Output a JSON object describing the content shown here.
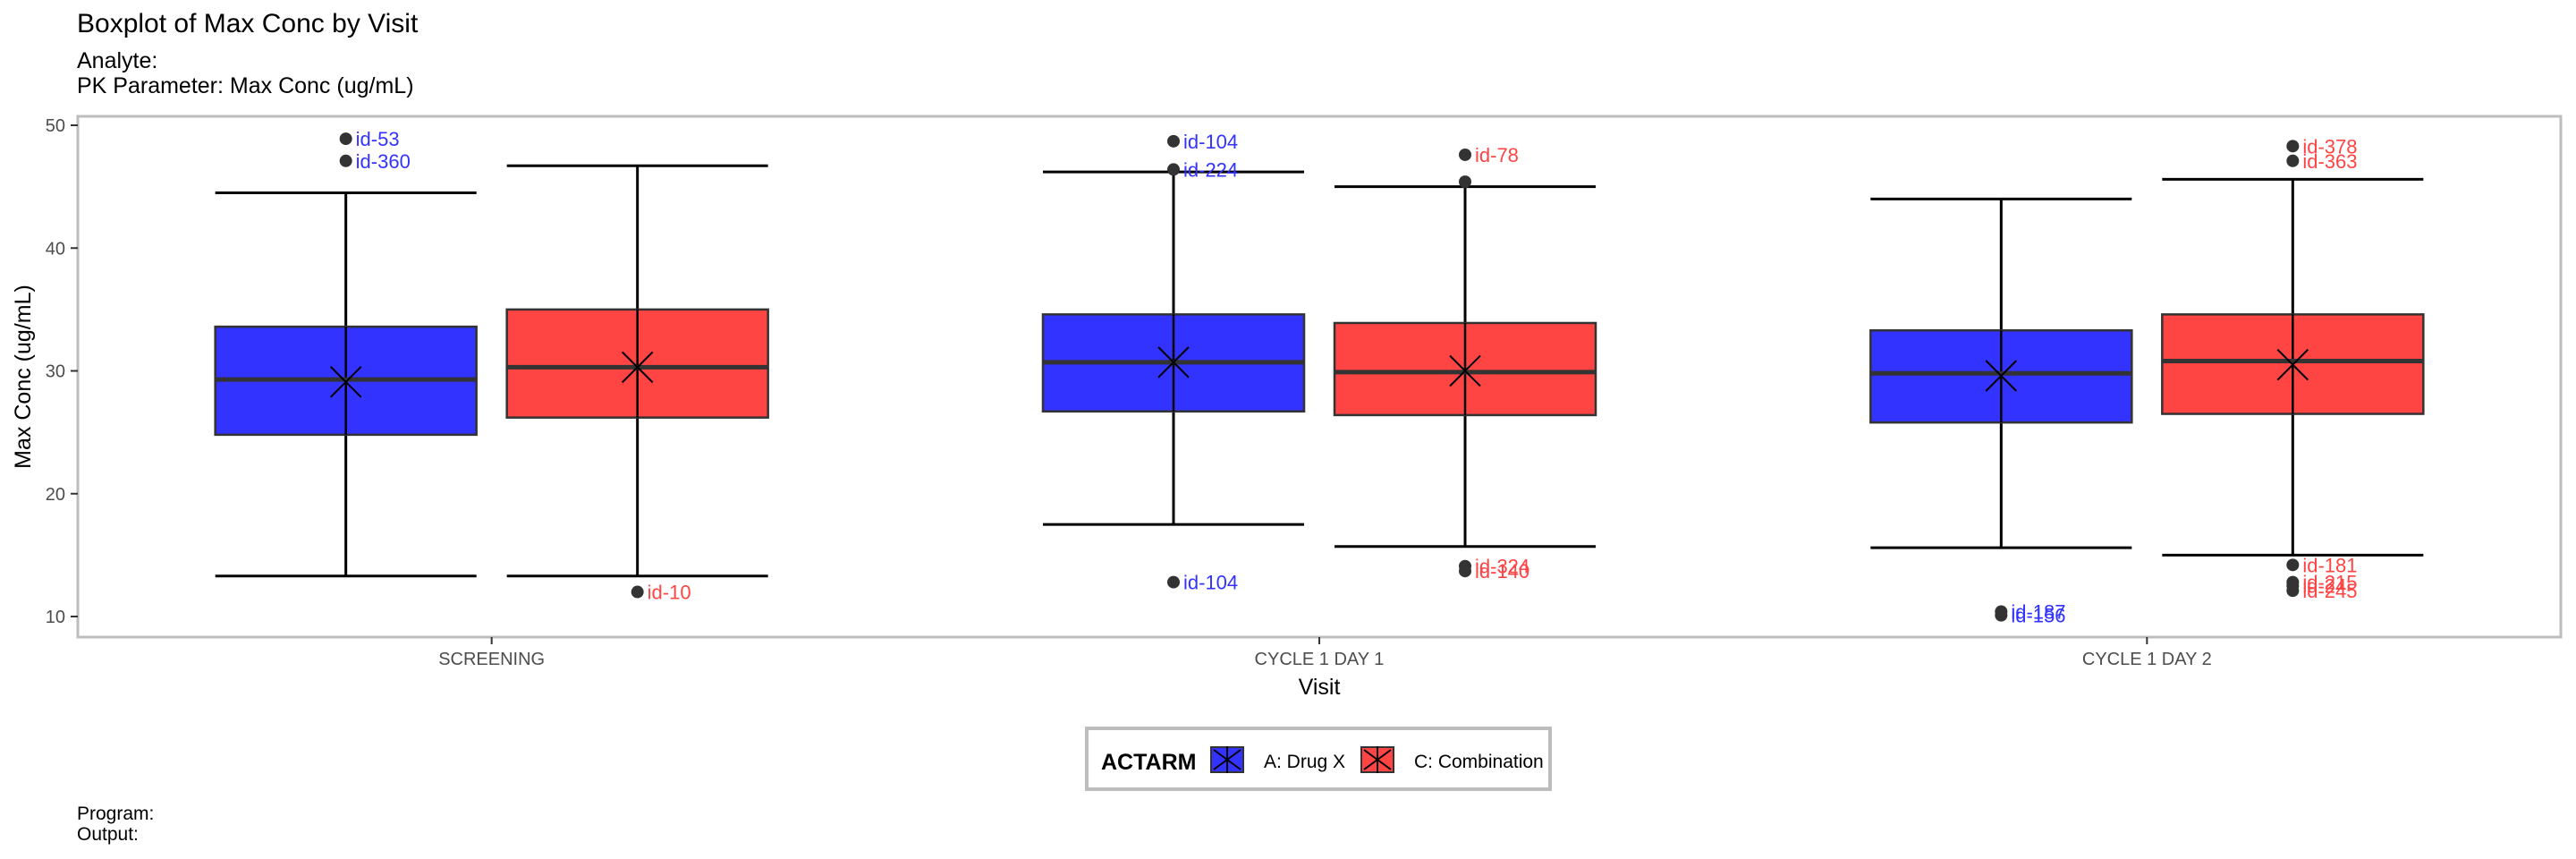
{
  "header": {
    "title": "Boxplot of Max Conc by Visit",
    "analyte": "Analyte:",
    "parameter": "PK Parameter: Max Conc (ug/mL)"
  },
  "footer": {
    "program": "Program:",
    "output": "Output:"
  },
  "colors": {
    "drug_x": "#3333FF",
    "combination": "#FF4444"
  },
  "chart_data": {
    "type": "boxplot",
    "title": "Boxplot of Max Conc by Visit",
    "subtitle": [
      "Analyte:",
      "PK Parameter: Max Conc (ug/mL)"
    ],
    "xlabel": "Visit",
    "ylabel": "Max Conc (ug/mL)",
    "ylim": [
      9,
      51
    ],
    "yticks": [
      10,
      20,
      30,
      40,
      50
    ],
    "categories": [
      "SCREENING",
      "CYCLE 1 DAY 1",
      "CYCLE 1 DAY 2"
    ],
    "grid": false,
    "legend": {
      "title": "ACTARM",
      "position": "bottom"
    },
    "mean_marker": "cross",
    "series": [
      {
        "name": "A: Drug X",
        "color": "#3333FF",
        "boxes": [
          {
            "lower_whisker": 13.3,
            "q1": 24.8,
            "median": 29.3,
            "q3": 33.6,
            "upper_whisker": 44.5,
            "mean": 29.1,
            "outliers": [
              {
                "value": 48.9,
                "label": "id-53"
              },
              {
                "value": 47.1,
                "label": "id-360"
              }
            ]
          },
          {
            "lower_whisker": 17.5,
            "q1": 26.7,
            "median": 30.7,
            "q3": 34.6,
            "upper_whisker": 46.2,
            "mean": 30.7,
            "outliers": [
              {
                "value": 48.7,
                "label": "id-104"
              },
              {
                "value": 46.4,
                "label": "id-224"
              },
              {
                "value": 12.8,
                "label": "id-104"
              }
            ]
          },
          {
            "lower_whisker": 15.6,
            "q1": 25.8,
            "median": 29.8,
            "q3": 33.3,
            "upper_whisker": 44.0,
            "mean": 29.6,
            "outliers": [
              {
                "value": 10.4,
                "label": "id-187"
              },
              {
                "value": 10.1,
                "label": "id-156"
              }
            ]
          }
        ]
      },
      {
        "name": "C: Combination",
        "color": "#FF4444",
        "boxes": [
          {
            "lower_whisker": 13.3,
            "q1": 26.2,
            "median": 30.3,
            "q3": 35.0,
            "upper_whisker": 46.7,
            "mean": 30.3,
            "outliers": [
              {
                "value": 12.0,
                "label": "id-10"
              }
            ]
          },
          {
            "lower_whisker": 15.7,
            "q1": 26.4,
            "median": 29.9,
            "q3": 33.9,
            "upper_whisker": 45.0,
            "mean": 30.0,
            "outliers": [
              {
                "value": 47.6,
                "label": "id-78"
              },
              {
                "value": 45.4,
                "label": ""
              },
              {
                "value": 14.1,
                "label": "id-324"
              },
              {
                "value": 13.7,
                "label": "id-140"
              }
            ]
          },
          {
            "lower_whisker": 15.0,
            "q1": 26.5,
            "median": 30.8,
            "q3": 34.6,
            "upper_whisker": 45.6,
            "mean": 30.5,
            "outliers": [
              {
                "value": 48.3,
                "label": "id-378"
              },
              {
                "value": 47.1,
                "label": "id-363"
              },
              {
                "value": 14.2,
                "label": "id-181"
              },
              {
                "value": 12.8,
                "label": "id-215"
              },
              {
                "value": 12.5,
                "label": "id-24"
              },
              {
                "value": 12.1,
                "label": "id-245"
              }
            ]
          }
        ]
      }
    ]
  }
}
